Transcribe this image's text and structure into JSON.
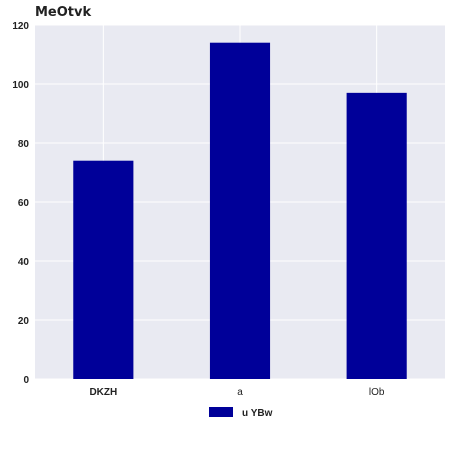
{
  "chart_data": {
    "type": "bar",
    "title": "MeOtvk",
    "xlabel": "",
    "ylabel": "",
    "categories": [
      "DKZH",
      "a",
      "lOb"
    ],
    "series": [
      {
        "name": "u YBw",
        "values": [
          74,
          114,
          97
        ],
        "color": "#000099"
      }
    ],
    "ylim": [
      0,
      120
    ],
    "yticks": [
      0,
      20,
      40,
      60,
      80,
      100,
      120
    ],
    "grid": true,
    "legend": {
      "position": "bottom-center"
    }
  }
}
